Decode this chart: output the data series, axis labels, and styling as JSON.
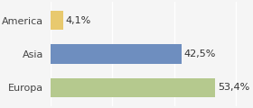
{
  "categories": [
    "America",
    "Asia",
    "Europa"
  ],
  "values": [
    4.1,
    42.5,
    53.4
  ],
  "labels": [
    "4,1%",
    "42,5%",
    "53,4%"
  ],
  "bar_colors": [
    "#e8c96e",
    "#6e8ebf",
    "#b5c98e"
  ],
  "background_color": "#f5f5f5",
  "xlim": [
    0,
    65
  ],
  "bar_height": 0.58,
  "label_fontsize": 8.0,
  "tick_fontsize": 8.0
}
